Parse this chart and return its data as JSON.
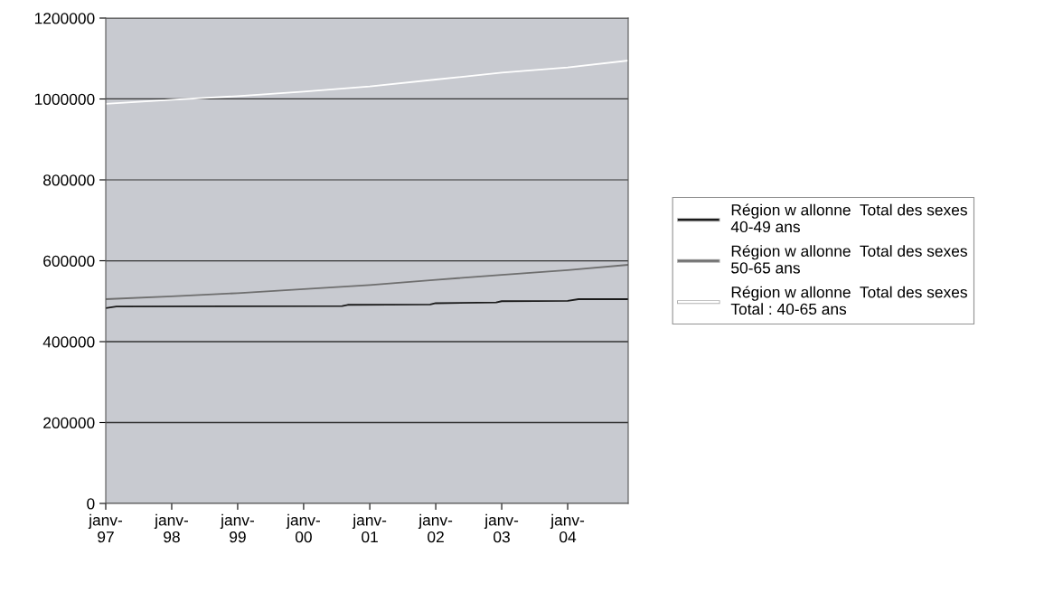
{
  "chart_data": {
    "type": "line",
    "xlim": [
      "1997-01",
      "2004-12"
    ],
    "xticks": [
      {
        "value": "1997-01",
        "label": "janv-\n97"
      },
      {
        "value": "1998-01",
        "label": "janv-\n98"
      },
      {
        "value": "1999-01",
        "label": "janv-\n99"
      },
      {
        "value": "2000-01",
        "label": "janv-\n00"
      },
      {
        "value": "2001-01",
        "label": "janv-\n01"
      },
      {
        "value": "2002-01",
        "label": "janv-\n02"
      },
      {
        "value": "2003-01",
        "label": "janv-\n03"
      },
      {
        "value": "2004-01",
        "label": "janv-\n04"
      }
    ],
    "ylim": [
      0,
      1200000
    ],
    "yticks": [
      0,
      200000,
      400000,
      600000,
      800000,
      1000000,
      1200000
    ],
    "grid": "y",
    "legend": "right",
    "marker": "none",
    "line_style": "solid",
    "series": [
      {
        "name": "Région w allonne  Total des sexes\n40-49 ans",
        "color": "#1a1a1a",
        "x": [
          "1997-01",
          "1997-03",
          "2000-08",
          "2000-09",
          "2001-12",
          "2002-01",
          "2002-12",
          "2003-01",
          "2004-01",
          "2004-03",
          "2004-12"
        ],
        "values": [
          483000,
          487000,
          488000,
          491000,
          492000,
          495000,
          497000,
          500000,
          501000,
          505000,
          505000
        ]
      },
      {
        "name": "Région w allonne  Total des sexes\n50-65 ans",
        "color": "#6e6e6e",
        "x": [
          "1997-01",
          "1998-01",
          "1999-01",
          "2000-01",
          "2001-01",
          "2002-01",
          "2003-01",
          "2004-01",
          "2004-12"
        ],
        "values": [
          505000,
          512000,
          520000,
          530000,
          540000,
          553000,
          565000,
          577000,
          590000
        ]
      },
      {
        "name": "Région w allonne  Total des sexes\nTotal : 40-65 ans",
        "color": "#ffffff",
        "x": [
          "1997-01",
          "1998-01",
          "1999-01",
          "2000-01",
          "2001-01",
          "2002-01",
          "2003-01",
          "2004-01",
          "2004-12"
        ],
        "values": [
          988000,
          998000,
          1007000,
          1018000,
          1031000,
          1048000,
          1065000,
          1078000,
          1095000
        ]
      }
    ]
  }
}
